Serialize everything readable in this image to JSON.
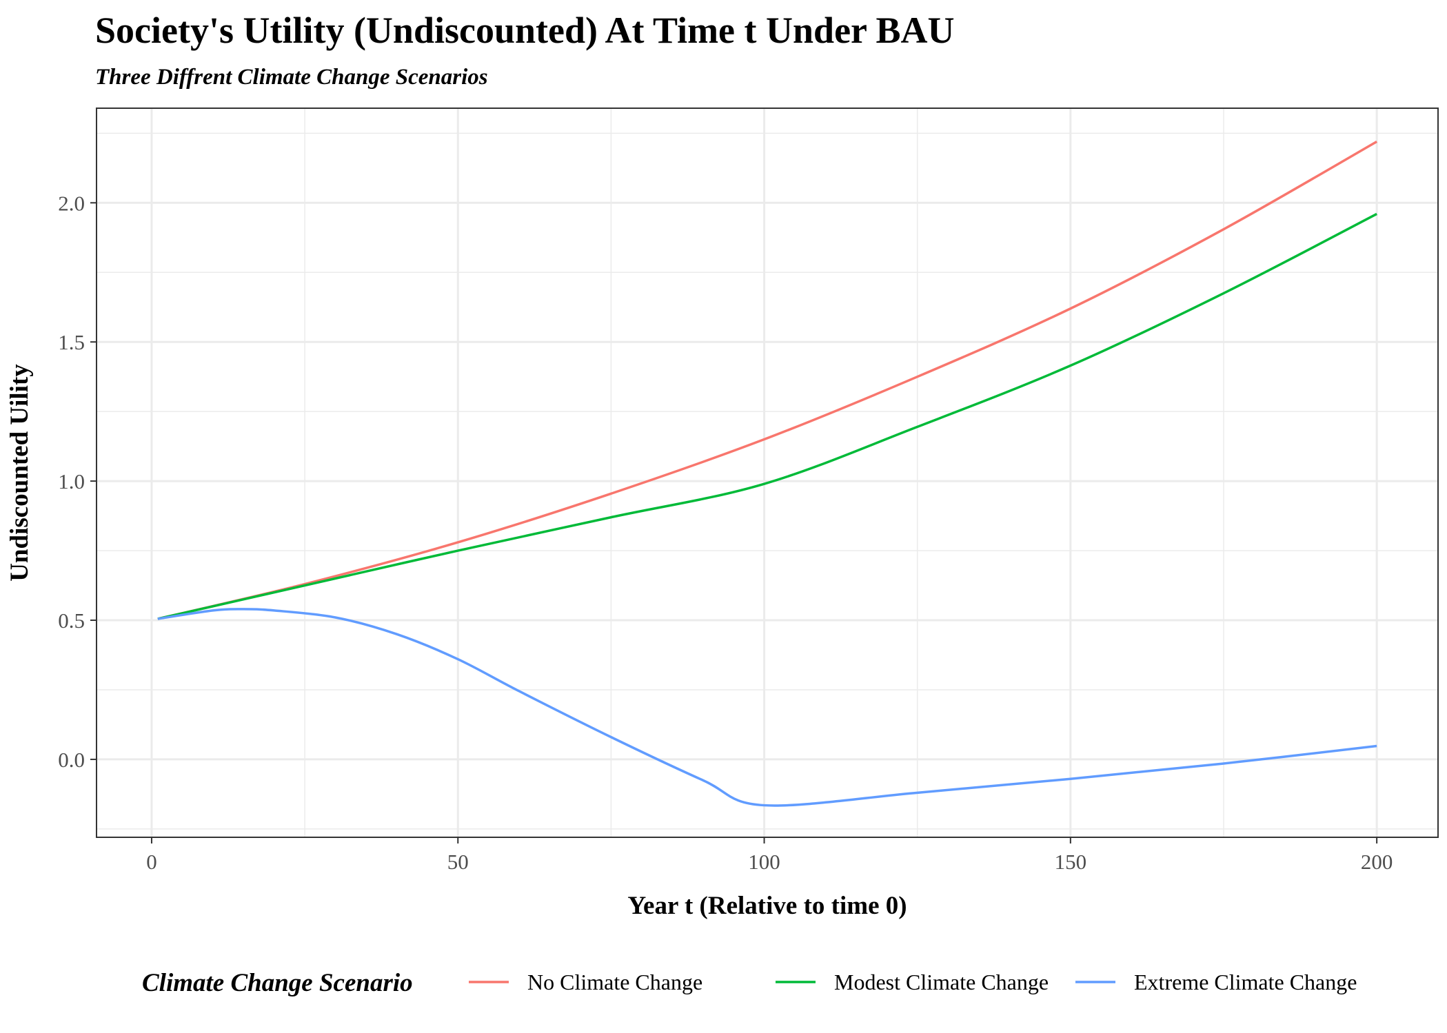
{
  "chart_data": {
    "type": "line",
    "title": "Society's Utility (Undiscounted) At Time t Under BAU",
    "subtitle": "Three Diffrent Climate Change Scenarios",
    "xlabel": "Year t (Relative to time 0)",
    "ylabel": "Undiscounted Uility",
    "xlim": [
      -9,
      210
    ],
    "ylim": [
      -0.28,
      2.34
    ],
    "x_ticks": [
      0,
      50,
      100,
      150,
      200
    ],
    "x_tick_labels": [
      "0",
      "50",
      "100",
      "150",
      "200"
    ],
    "y_ticks": [
      0.0,
      0.5,
      1.0,
      1.5,
      2.0
    ],
    "y_tick_labels": [
      "0.0",
      "0.5",
      "1.0",
      "1.5",
      "2.0"
    ],
    "grid": true,
    "legend": {
      "title": "Climate Change Scenario",
      "position": "bottom"
    },
    "series": [
      {
        "name": "No Climate Change",
        "color": "#F8766D",
        "x": [
          1,
          25,
          50,
          75,
          100,
          125,
          150,
          175,
          200
        ],
        "y": [
          0.505,
          0.63,
          0.78,
          0.955,
          1.15,
          1.375,
          1.62,
          1.905,
          2.22
        ]
      },
      {
        "name": "Modest Climate Change",
        "color": "#00BA38",
        "x": [
          1,
          25,
          50,
          75,
          100,
          125,
          150,
          175,
          200
        ],
        "y": [
          0.505,
          0.625,
          0.75,
          0.87,
          0.99,
          1.195,
          1.415,
          1.675,
          1.96
        ]
      },
      {
        "name": "Extreme Climate Change",
        "color": "#619CFF",
        "x": [
          1,
          10,
          15,
          20,
          30,
          40,
          50,
          60,
          75,
          90,
          100,
          125,
          150,
          175,
          200
        ],
        "y": [
          0.505,
          0.535,
          0.54,
          0.535,
          0.51,
          0.45,
          0.36,
          0.245,
          0.08,
          -0.075,
          -0.165,
          -0.12,
          -0.07,
          -0.015,
          0.048
        ]
      }
    ]
  }
}
